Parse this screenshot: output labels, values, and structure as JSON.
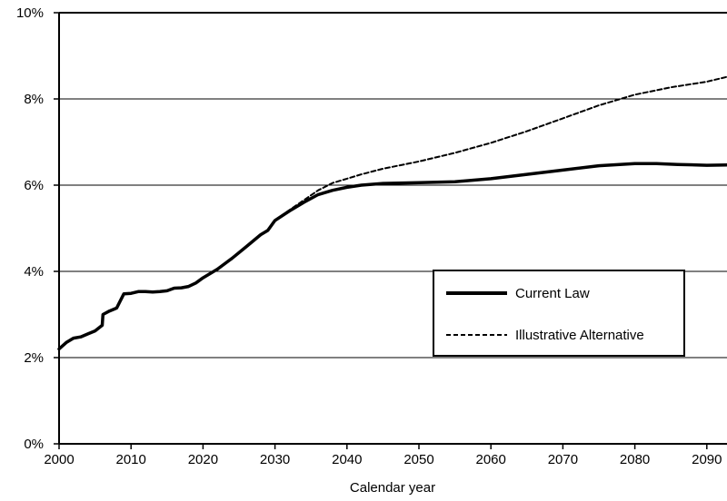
{
  "chart_data": {
    "type": "line",
    "title": "",
    "xlabel": "Calendar year",
    "ylabel": "",
    "xlim": [
      2000,
      2093
    ],
    "ylim": [
      0,
      10
    ],
    "x_ticks": [
      2000,
      2010,
      2020,
      2030,
      2040,
      2050,
      2060,
      2070,
      2080,
      2090
    ],
    "x_tick_labels": [
      "2000",
      "2010",
      "2020",
      "2030",
      "2040",
      "2050",
      "2060",
      "2070",
      "2080",
      "2090"
    ],
    "y_ticks": [
      0,
      2,
      4,
      6,
      8,
      10
    ],
    "y_tick_labels": [
      "0%",
      "2%",
      "4%",
      "6%",
      "8%",
      "10%"
    ],
    "grid": {
      "horizontal": true,
      "vertical": false
    },
    "legend_position": "lower-right",
    "series": [
      {
        "name": "Current Law",
        "style": "solid",
        "color": "#000000",
        "x": [
          2000,
          2001,
          2002,
          2003,
          2004,
          2005,
          2006,
          2006.1,
          2007,
          2008,
          2009,
          2010,
          2011,
          2012,
          2013,
          2014,
          2015,
          2016,
          2017,
          2018,
          2019,
          2020,
          2022,
          2024,
          2026,
          2028,
          2029,
          2030,
          2032,
          2034,
          2036,
          2038,
          2040,
          2042,
          2045,
          2050,
          2055,
          2060,
          2065,
          2070,
          2075,
          2080,
          2083,
          2086,
          2090,
          2093
        ],
        "values": [
          2.2,
          2.35,
          2.45,
          2.48,
          2.55,
          2.62,
          2.75,
          3.0,
          3.08,
          3.15,
          3.48,
          3.49,
          3.53,
          3.53,
          3.52,
          3.53,
          3.55,
          3.61,
          3.62,
          3.65,
          3.73,
          3.85,
          4.05,
          4.3,
          4.57,
          4.85,
          4.95,
          5.18,
          5.4,
          5.6,
          5.78,
          5.88,
          5.95,
          6.0,
          6.04,
          6.06,
          6.08,
          6.15,
          6.25,
          6.35,
          6.45,
          6.5,
          6.5,
          6.48,
          6.46,
          6.47
        ]
      },
      {
        "name": "Illustrative Alternative",
        "style": "dashed",
        "color": "#000000",
        "x": [
          2030,
          2032,
          2034,
          2036,
          2038,
          2040,
          2042,
          2045,
          2050,
          2055,
          2060,
          2065,
          2070,
          2075,
          2080,
          2085,
          2090,
          2093
        ],
        "values": [
          5.18,
          5.42,
          5.65,
          5.88,
          6.05,
          6.15,
          6.25,
          6.38,
          6.55,
          6.75,
          6.98,
          7.25,
          7.55,
          7.85,
          8.1,
          8.27,
          8.4,
          8.52
        ]
      }
    ]
  }
}
